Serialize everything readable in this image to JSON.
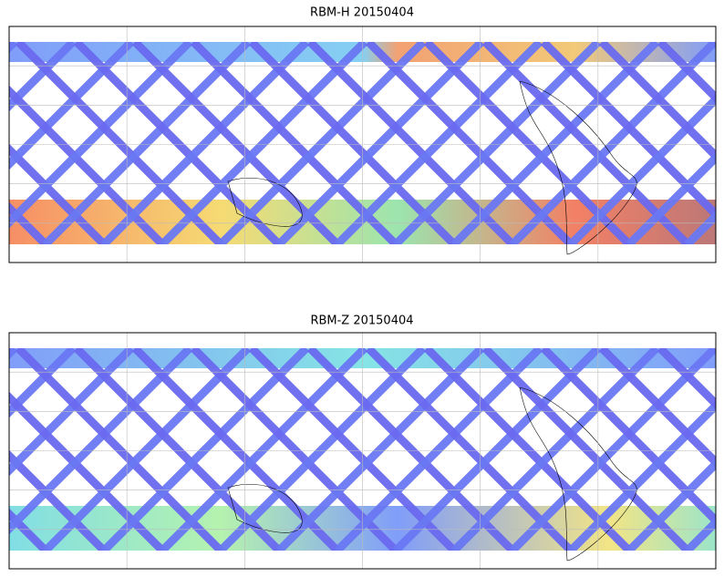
{
  "maps": [
    {
      "title": "RBM-H 20150404"
    },
    {
      "title": "RBM-Z 20150404"
    }
  ]
}
